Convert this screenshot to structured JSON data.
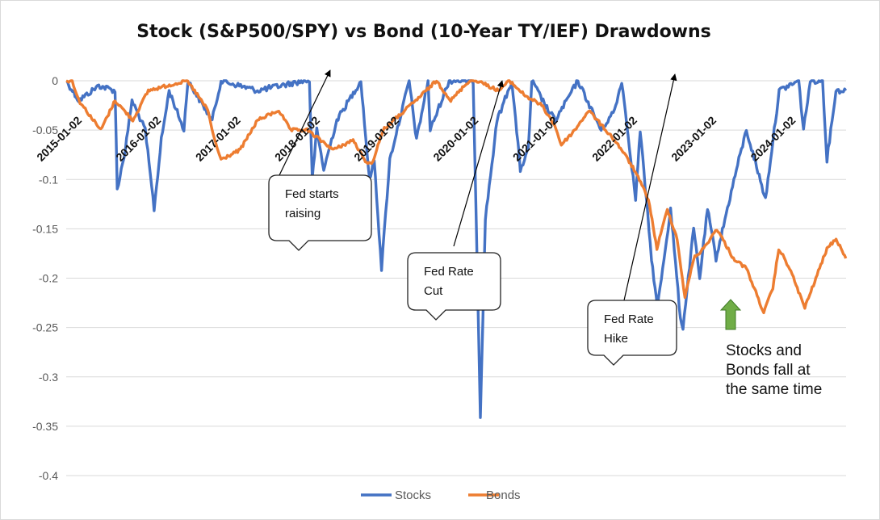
{
  "chart_data": {
    "type": "line",
    "title": "Stock (S&P500/SPY) vs Bond (10-Year TY/IEF) Drawdowns",
    "xlabel": "",
    "ylabel": "",
    "ylim": [
      -0.4,
      0
    ],
    "y_ticks": [
      "0",
      "-0.05",
      "-0.1",
      "-0.15",
      "-0.2",
      "-0.25",
      "-0.3",
      "-0.35",
      "-0.4"
    ],
    "x_tick_labels": [
      "2015-01-02",
      "2016-01-02",
      "2017-01-02",
      "2018-01-02",
      "2019-01-02",
      "2020-01-02",
      "2021-01-02",
      "2022-01-02",
      "2023-01-02",
      "2024-01-02"
    ],
    "grid": "horizontal",
    "legend_position": "bottom",
    "series": [
      {
        "name": "Stocks",
        "color": "#4472C4",
        "points": [
          [
            "2015-01-02",
            0
          ],
          [
            "2015-03-01",
            -0.02
          ],
          [
            "2015-06-01",
            -0.005
          ],
          [
            "2015-08-15",
            -0.01
          ],
          [
            "2015-08-25",
            -0.11
          ],
          [
            "2015-10-01",
            -0.07
          ],
          [
            "2015-11-01",
            -0.02
          ],
          [
            "2016-01-01",
            -0.05
          ],
          [
            "2016-02-11",
            -0.13
          ],
          [
            "2016-03-15",
            -0.06
          ],
          [
            "2016-04-20",
            -0.01
          ],
          [
            "2016-06-27",
            -0.05
          ],
          [
            "2016-07-15",
            0
          ],
          [
            "2016-11-04",
            -0.04
          ],
          [
            "2016-12-15",
            0
          ],
          [
            "2017-06-01",
            -0.01
          ],
          [
            "2017-12-31",
            0
          ],
          [
            "2018-01-26",
            0
          ],
          [
            "2018-02-08",
            -0.1
          ],
          [
            "2018-03-01",
            -0.05
          ],
          [
            "2018-04-02",
            -0.09
          ],
          [
            "2018-06-01",
            -0.04
          ],
          [
            "2018-09-20",
            0
          ],
          [
            "2018-10-29",
            -0.1
          ],
          [
            "2018-11-20",
            -0.08
          ],
          [
            "2018-12-24",
            -0.19
          ],
          [
            "2019-01-31",
            -0.08
          ],
          [
            "2019-04-30",
            0
          ],
          [
            "2019-06-03",
            -0.06
          ],
          [
            "2019-07-26",
            0
          ],
          [
            "2019-08-05",
            -0.05
          ],
          [
            "2019-10-31",
            0
          ],
          [
            "2020-02-19",
            0
          ],
          [
            "2020-03-09",
            -0.19
          ],
          [
            "2020-03-23",
            -0.34
          ],
          [
            "2020-04-15",
            -0.14
          ],
          [
            "2020-06-08",
            -0.04
          ],
          [
            "2020-08-15",
            0
          ],
          [
            "2020-09-23",
            -0.09
          ],
          [
            "2020-10-30",
            -0.07
          ],
          [
            "2020-11-15",
            0
          ],
          [
            "2021-01-29",
            -0.03
          ],
          [
            "2021-03-04",
            -0.04
          ],
          [
            "2021-06-15",
            0
          ],
          [
            "2021-09-30",
            -0.05
          ],
          [
            "2021-12-01",
            -0.03
          ],
          [
            "2022-01-03",
            0
          ],
          [
            "2022-03-08",
            -0.12
          ],
          [
            "2022-03-29",
            -0.05
          ],
          [
            "2022-05-20",
            -0.18
          ],
          [
            "2022-06-16",
            -0.23
          ],
          [
            "2022-08-16",
            -0.13
          ],
          [
            "2022-09-30",
            -0.24
          ],
          [
            "2022-10-12",
            -0.25
          ],
          [
            "2022-11-30",
            -0.15
          ],
          [
            "2022-12-28",
            -0.2
          ],
          [
            "2023-02-02",
            -0.13
          ],
          [
            "2023-03-13",
            -0.18
          ],
          [
            "2023-06-15",
            -0.09
          ],
          [
            "2023-07-31",
            -0.05
          ],
          [
            "2023-10-27",
            -0.12
          ],
          [
            "2023-12-29",
            -0.01
          ],
          [
            "2024-03-28",
            0
          ],
          [
            "2024-04-19",
            -0.05
          ],
          [
            "2024-05-20",
            0
          ],
          [
            "2024-07-16",
            0
          ],
          [
            "2024-08-05",
            -0.08
          ],
          [
            "2024-09-15",
            -0.01
          ],
          [
            "2024-10-31",
            -0.01
          ]
        ]
      },
      {
        "name": "Bonds",
        "color": "#ED7D31",
        "points": [
          [
            "2015-01-02",
            0
          ],
          [
            "2015-01-30",
            0
          ],
          [
            "2015-03-01",
            -0.02
          ],
          [
            "2015-06-10",
            -0.05
          ],
          [
            "2015-08-15",
            -0.02
          ],
          [
            "2015-11-05",
            -0.04
          ],
          [
            "2016-01-15",
            -0.01
          ],
          [
            "2016-07-08",
            0
          ],
          [
            "2016-08-15",
            -0.01
          ],
          [
            "2016-10-15",
            -0.03
          ],
          [
            "2016-11-15",
            -0.06
          ],
          [
            "2016-12-15",
            -0.08
          ],
          [
            "2017-03-13",
            -0.07
          ],
          [
            "2017-06-01",
            -0.04
          ],
          [
            "2017-09-07",
            -0.03
          ],
          [
            "2017-10-31",
            -0.05
          ],
          [
            "2018-01-15",
            -0.05
          ],
          [
            "2018-05-17",
            -0.07
          ],
          [
            "2018-08-15",
            -0.06
          ],
          [
            "2018-10-05",
            -0.08
          ],
          [
            "2018-11-08",
            -0.085
          ],
          [
            "2018-12-31",
            -0.05
          ],
          [
            "2019-05-31",
            -0.02
          ],
          [
            "2019-09-03",
            0
          ],
          [
            "2019-11-08",
            -0.02
          ],
          [
            "2020-01-31",
            0
          ],
          [
            "2020-03-09",
            0
          ],
          [
            "2020-06-15",
            -0.01
          ],
          [
            "2020-08-04",
            0
          ],
          [
            "2020-10-15",
            -0.015
          ],
          [
            "2020-12-31",
            -0.025
          ],
          [
            "2021-02-28",
            -0.045
          ],
          [
            "2021-03-31",
            -0.065
          ],
          [
            "2021-06-01",
            -0.05
          ],
          [
            "2021-08-04",
            -0.03
          ],
          [
            "2021-11-30",
            -0.06
          ],
          [
            "2022-01-03",
            -0.07
          ],
          [
            "2022-03-01",
            -0.09
          ],
          [
            "2022-05-06",
            -0.12
          ],
          [
            "2022-06-14",
            -0.17
          ],
          [
            "2022-08-01",
            -0.13
          ],
          [
            "2022-09-15",
            -0.16
          ],
          [
            "2022-10-21",
            -0.22
          ],
          [
            "2022-11-30",
            -0.18
          ],
          [
            "2023-01-15",
            -0.17
          ],
          [
            "2023-03-17",
            -0.15
          ],
          [
            "2023-06-01",
            -0.18
          ],
          [
            "2023-07-31",
            -0.19
          ],
          [
            "2023-10-19",
            -0.235
          ],
          [
            "2023-11-30",
            -0.21
          ],
          [
            "2023-12-27",
            -0.17
          ],
          [
            "2024-02-15",
            -0.19
          ],
          [
            "2024-04-25",
            -0.23
          ],
          [
            "2024-06-15",
            -0.2
          ],
          [
            "2024-08-05",
            -0.17
          ],
          [
            "2024-09-16",
            -0.16
          ],
          [
            "2024-10-31",
            -0.18
          ]
        ]
      }
    ],
    "annotations": [
      {
        "lines": [
          "Fed starts",
          "raising"
        ],
        "date": "2018-01-02"
      },
      {
        "lines": [
          "Fed Rate",
          "Cut"
        ],
        "date": "2020-01-02"
      },
      {
        "lines": [
          "Fed Rate",
          "Hike"
        ],
        "date": "2022-03-01"
      }
    ],
    "note": {
      "lines": [
        "Stocks and",
        "Bonds fall at",
        "the same time"
      ],
      "arrow_color": "#70AD47"
    }
  }
}
